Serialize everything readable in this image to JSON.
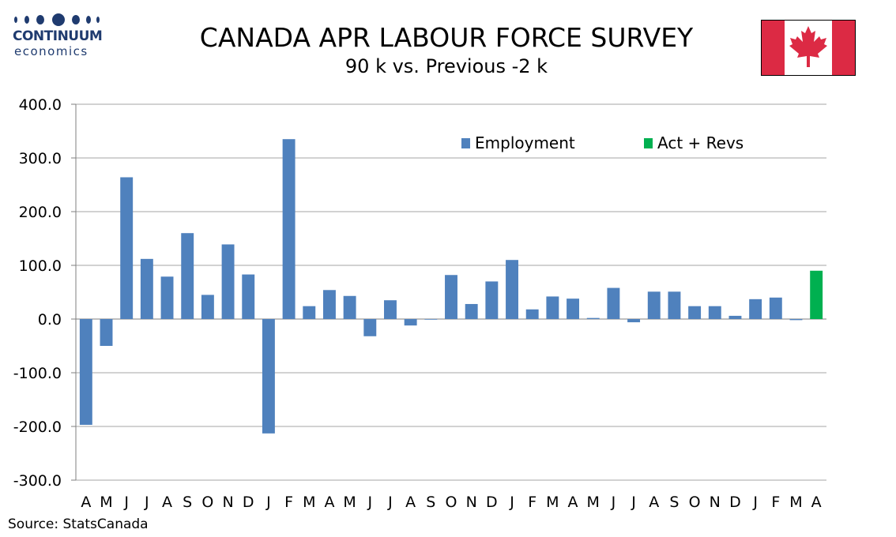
{
  "header": {
    "title": "CANADA APR LABOUR FORCE SURVEY",
    "subtitle": "90 k vs.  Previous -2 k"
  },
  "logo": {
    "word": "CONTINUUM",
    "sub": "economics",
    "color": "#1f3b6f"
  },
  "flag": {
    "red": "#dc2a44",
    "white": "#ffffff",
    "icon": "maple-leaf-icon"
  },
  "source": "Source: StatsCanada",
  "colors": {
    "employment": "#4f81bd",
    "act_revs": "#00b050",
    "grid": "#a6a6a6"
  },
  "chart_data": {
    "type": "bar",
    "title": "CANADA APR LABOUR FORCE SURVEY",
    "subtitle": "90 k vs.  Previous -2 k",
    "categories": [
      "A",
      "M",
      "J",
      "J",
      "A",
      "S",
      "O",
      "N",
      "D",
      "J",
      "F",
      "M",
      "A",
      "M",
      "J",
      "J",
      "A",
      "S",
      "O",
      "N",
      "D",
      "J",
      "F",
      "M",
      "A",
      "M",
      "J",
      "J",
      "A",
      "S",
      "O",
      "N",
      "D",
      "J",
      "F",
      "M",
      "A"
    ],
    "series": [
      {
        "name": "Employment",
        "color": "#4f81bd",
        "values": [
          -197,
          -50,
          264,
          112,
          79,
          160,
          45,
          139,
          83,
          -213,
          335,
          24,
          54,
          43,
          -32,
          35,
          -12,
          0,
          82,
          28,
          70,
          110,
          18,
          42,
          38,
          2,
          58,
          -6,
          51,
          51,
          24,
          24,
          6,
          37,
          40,
          -2,
          null
        ]
      },
      {
        "name": "Act + Revs",
        "color": "#00b050",
        "values": [
          null,
          null,
          null,
          null,
          null,
          null,
          null,
          null,
          null,
          null,
          null,
          null,
          null,
          null,
          null,
          null,
          null,
          null,
          null,
          null,
          null,
          null,
          null,
          null,
          null,
          null,
          null,
          null,
          null,
          null,
          null,
          null,
          null,
          null,
          null,
          null,
          90
        ]
      }
    ],
    "ylim": [
      -300,
      400
    ],
    "yticks": [
      "400.0",
      "300.0",
      "200.0",
      "100.0",
      "0.0",
      "-100.0",
      "-200.0",
      "-300.0"
    ],
    "ytick_values": [
      400,
      300,
      200,
      100,
      0,
      -100,
      -200,
      -300
    ],
    "grid": true,
    "legend": "top-right",
    "xlabel": "",
    "ylabel": ""
  }
}
